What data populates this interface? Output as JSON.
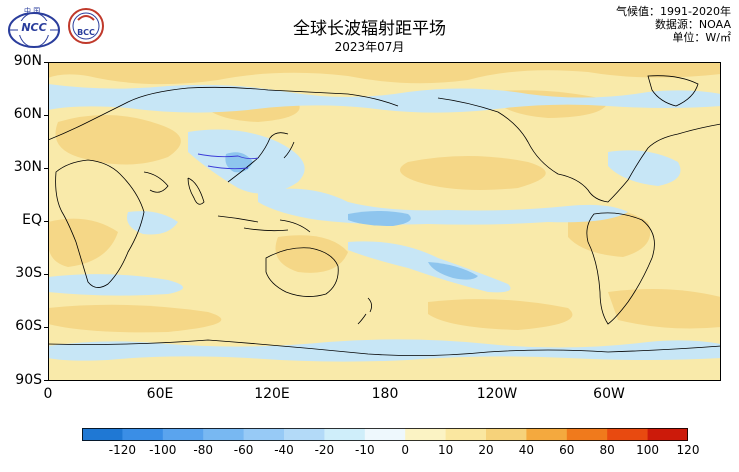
{
  "header": {
    "title": "全球长波辐射距平场",
    "subtitle": "2023年07月",
    "meta": [
      "气候值：1991-2020年",
      "数据源：NOAA",
      "单位：W/㎡"
    ]
  },
  "logos": [
    {
      "name": "cma-ncc-logo",
      "text_top": "中 国",
      "text_main": "NCC"
    },
    {
      "name": "bcc-logo",
      "text_main": "BCC"
    }
  ],
  "axes": {
    "lat_labels": [
      "90N",
      "60N",
      "30N",
      "EQ",
      "30S",
      "60S",
      "90S"
    ],
    "lon_labels": [
      "0",
      "60E",
      "120E",
      "180",
      "120W",
      "60W"
    ]
  },
  "colorbar": {
    "labels": [
      "-120",
      "-100",
      "-80",
      "-60",
      "-40",
      "-20",
      "-10",
      "0",
      "10",
      "20",
      "40",
      "60",
      "80",
      "100",
      "120"
    ],
    "colors": [
      "#1f78d4",
      "#3a8ee6",
      "#5aa4ee",
      "#78b8f2",
      "#97caf6",
      "#b3daf8",
      "#cfeefa",
      "#eef8fd",
      "#fbf3c4",
      "#fae7a0",
      "#f6d27a",
      "#f4a93e",
      "#f07a1c",
      "#e84a10",
      "#cc1a0a"
    ]
  },
  "map": {
    "background_color": "#f9eaaa",
    "positive_color": "#f5d787",
    "negative_color": "#c7e6f6",
    "strong_negative_color": "#8ec5ee",
    "land_outline_color": "#000000",
    "river_color": "#3b3bd8"
  }
}
